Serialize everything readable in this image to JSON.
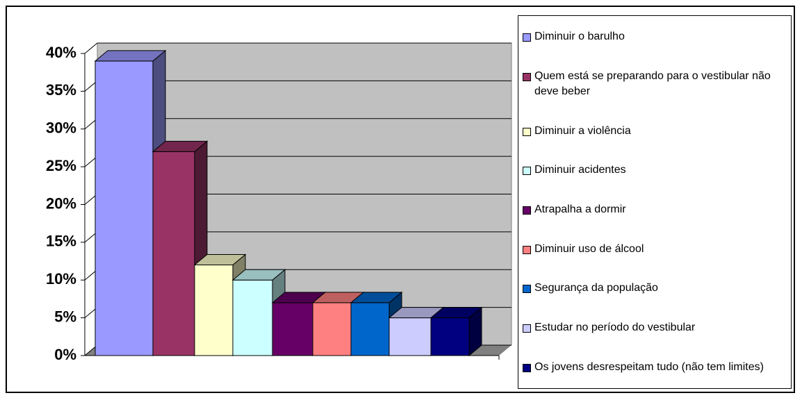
{
  "chart_data": {
    "type": "bar3d",
    "series": [
      {
        "name": "Diminuir o barulho",
        "color": "#9999ff",
        "values": [
          39
        ]
      },
      {
        "name": "Quem está se preparando para o vestibular não deve beber",
        "color": "#993366",
        "values": [
          27
        ]
      },
      {
        "name": "Diminuir a violência",
        "color": "#ffffcc",
        "values": [
          12
        ]
      },
      {
        "name": "Diminuir acidentes",
        "color": "#ccffff",
        "values": [
          10
        ]
      },
      {
        "name": "Atrapalha a dormir",
        "color": "#660066",
        "values": [
          7
        ]
      },
      {
        "name": "Diminuir uso de álcool",
        "color": "#ff8080",
        "values": [
          7
        ]
      },
      {
        "name": "Segurança da população",
        "color": "#0066cc",
        "values": [
          7
        ]
      },
      {
        "name": "Estudar no período do vestibular",
        "color": "#ccccff",
        "values": [
          5
        ]
      },
      {
        "name": "Os jovens desrespeitam tudo (não tem limites)",
        "color": "#000080",
        "values": [
          5
        ]
      }
    ],
    "ylim": [
      0,
      40
    ],
    "yticks": [
      {
        "value": 0,
        "label": "0%"
      },
      {
        "value": 5,
        "label": "5%"
      },
      {
        "value": 10,
        "label": "10%"
      },
      {
        "value": 15,
        "label": "15%"
      },
      {
        "value": 20,
        "label": "20%"
      },
      {
        "value": 25,
        "label": "25%"
      },
      {
        "value": 30,
        "label": "30%"
      },
      {
        "value": 35,
        "label": "35%"
      },
      {
        "value": 40,
        "label": "40%"
      }
    ],
    "grid": true
  }
}
